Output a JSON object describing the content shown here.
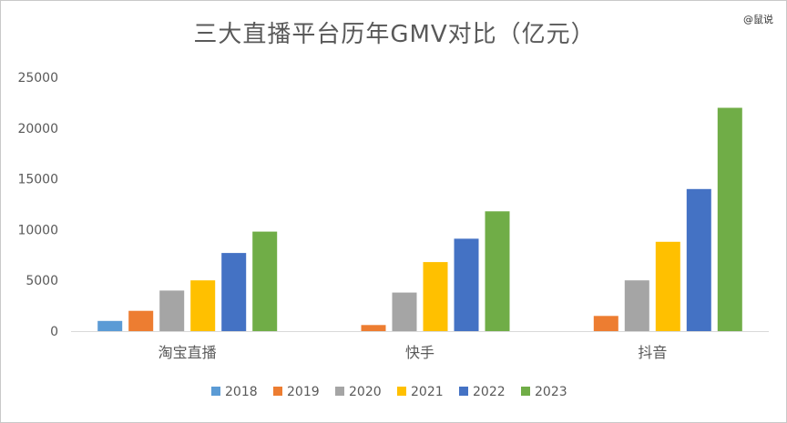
{
  "watermark": "@鼠说",
  "chart_data": {
    "type": "bar",
    "title": "三大直播平台历年GMV对比（亿元）",
    "xlabel": "",
    "ylabel": "",
    "categories": [
      "淘宝直播",
      "快手",
      "抖音"
    ],
    "series": [
      {
        "name": "2018",
        "color": "#5B9BD5",
        "values": [
          1000,
          0,
          0
        ]
      },
      {
        "name": "2019",
        "color": "#ED7D31",
        "values": [
          2000,
          600,
          1500
        ]
      },
      {
        "name": "2020",
        "color": "#A5A5A5",
        "values": [
          4000,
          3800,
          5000
        ]
      },
      {
        "name": "2021",
        "color": "#FFC000",
        "values": [
          5000,
          6800,
          8800
        ]
      },
      {
        "name": "2022",
        "color": "#4472C4",
        "values": [
          7700,
          9100,
          14000
        ]
      },
      {
        "name": "2023",
        "color": "#70AD47",
        "values": [
          9800,
          11800,
          22000
        ]
      }
    ],
    "ylim": [
      0,
      25000
    ],
    "yticks": [
      0,
      5000,
      10000,
      15000,
      20000,
      25000
    ],
    "grid": false,
    "legend_position": "bottom"
  }
}
